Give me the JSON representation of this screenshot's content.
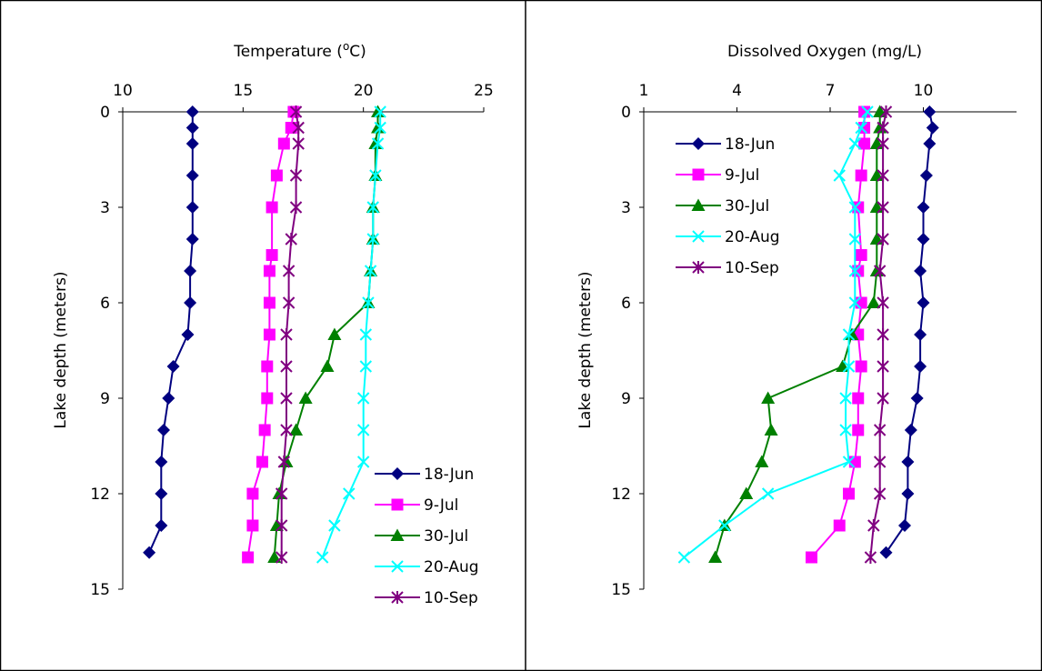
{
  "chart_data": [
    {
      "type": "line",
      "title": "",
      "xlabel": "Temperature (°C)",
      "xlabel_parts": [
        "Temperature (",
        "o",
        "C)"
      ],
      "ylabel": "Lake depth (meters)",
      "x_axis_position": "top",
      "y_inverted": true,
      "xlim": [
        10,
        25
      ],
      "ylim": [
        0,
        15
      ],
      "xticks": [
        "10",
        "15",
        "20",
        "25"
      ],
      "yticks": [
        "0",
        "3",
        "6",
        "9",
        "12",
        "15"
      ],
      "legend_position": "bottom-right",
      "series": [
        {
          "name": "18-Jun",
          "color": "#000080",
          "marker": "diamond",
          "points": [
            [
              12.9,
              0
            ],
            [
              12.9,
              0.5
            ],
            [
              12.9,
              1
            ],
            [
              12.9,
              2
            ],
            [
              12.9,
              3
            ],
            [
              12.9,
              4
            ],
            [
              12.8,
              5
            ],
            [
              12.8,
              6
            ],
            [
              12.7,
              7
            ],
            [
              12.1,
              8
            ],
            [
              11.9,
              9
            ],
            [
              11.7,
              10
            ],
            [
              11.6,
              11
            ],
            [
              11.6,
              12
            ],
            [
              11.6,
              13
            ],
            [
              11.1,
              13.85
            ]
          ]
        },
        {
          "name": "9-Jul",
          "color": "#ff00ff",
          "marker": "square",
          "points": [
            [
              17.1,
              0
            ],
            [
              17.0,
              0.5
            ],
            [
              16.7,
              1
            ],
            [
              16.4,
              2
            ],
            [
              16.2,
              3
            ],
            [
              16.2,
              4.5
            ],
            [
              16.1,
              5
            ],
            [
              16.1,
              6
            ],
            [
              16.1,
              7
            ],
            [
              16.0,
              8
            ],
            [
              16.0,
              9
            ],
            [
              15.9,
              10
            ],
            [
              15.8,
              11
            ],
            [
              15.4,
              12
            ],
            [
              15.4,
              13
            ],
            [
              15.2,
              14
            ]
          ]
        },
        {
          "name": "30-Jul",
          "color": "#008000",
          "marker": "triangle",
          "points": [
            [
              20.6,
              0
            ],
            [
              20.6,
              0.5
            ],
            [
              20.5,
              1
            ],
            [
              20.5,
              2
            ],
            [
              20.4,
              3
            ],
            [
              20.4,
              4
            ],
            [
              20.3,
              5
            ],
            [
              20.2,
              6
            ],
            [
              18.8,
              7
            ],
            [
              18.5,
              8
            ],
            [
              17.6,
              9
            ],
            [
              17.2,
              10
            ],
            [
              16.8,
              11
            ],
            [
              16.5,
              12
            ],
            [
              16.4,
              13
            ],
            [
              16.3,
              14
            ]
          ]
        },
        {
          "name": "20-Aug",
          "color": "#00ffff",
          "marker": "x",
          "points": [
            [
              20.7,
              0
            ],
            [
              20.7,
              0.5
            ],
            [
              20.6,
              1
            ],
            [
              20.5,
              2
            ],
            [
              20.4,
              3
            ],
            [
              20.4,
              4
            ],
            [
              20.3,
              5
            ],
            [
              20.2,
              6
            ],
            [
              20.1,
              7
            ],
            [
              20.1,
              8
            ],
            [
              20.0,
              9
            ],
            [
              20.0,
              10
            ],
            [
              20.0,
              11
            ],
            [
              19.4,
              12
            ],
            [
              18.8,
              13
            ],
            [
              18.3,
              14
            ]
          ]
        },
        {
          "name": "10-Sep",
          "color": "#800080",
          "marker": "asterisk",
          "points": [
            [
              17.2,
              0
            ],
            [
              17.3,
              0.5
            ],
            [
              17.3,
              1
            ],
            [
              17.2,
              2
            ],
            [
              17.2,
              3
            ],
            [
              17.0,
              4
            ],
            [
              16.9,
              5
            ],
            [
              16.9,
              6
            ],
            [
              16.8,
              7
            ],
            [
              16.8,
              8
            ],
            [
              16.8,
              9
            ],
            [
              16.8,
              10
            ],
            [
              16.7,
              11
            ],
            [
              16.6,
              12
            ],
            [
              16.6,
              13
            ],
            [
              16.6,
              14
            ]
          ]
        }
      ]
    },
    {
      "type": "line",
      "title": "",
      "xlabel": "Dissolved Oxygen (mg/L)",
      "ylabel": "Lake depth (meters)",
      "x_axis_position": "top",
      "y_inverted": true,
      "xlim": [
        1,
        13
      ],
      "ylim": [
        0,
        15
      ],
      "xticks": [
        "1",
        "4",
        "7",
        "10"
      ],
      "yticks": [
        "0",
        "3",
        "6",
        "9",
        "12",
        "15"
      ],
      "legend_position": "top-left",
      "series": [
        {
          "name": "18-Jun",
          "color": "#000080",
          "marker": "diamond",
          "points": [
            [
              10.2,
              0
            ],
            [
              10.3,
              0.5
            ],
            [
              10.2,
              1
            ],
            [
              10.1,
              2
            ],
            [
              10.0,
              3
            ],
            [
              10.0,
              4
            ],
            [
              9.9,
              5
            ],
            [
              10.0,
              6
            ],
            [
              9.9,
              7
            ],
            [
              9.9,
              8
            ],
            [
              9.8,
              9
            ],
            [
              9.6,
              10
            ],
            [
              9.5,
              11
            ],
            [
              9.5,
              12
            ],
            [
              9.4,
              13
            ],
            [
              8.8,
              13.85
            ]
          ]
        },
        {
          "name": "9-Jul",
          "color": "#ff00ff",
          "marker": "square",
          "points": [
            [
              8.1,
              0
            ],
            [
              8.1,
              0.5
            ],
            [
              8.1,
              1
            ],
            [
              8.0,
              2
            ],
            [
              7.9,
              3
            ],
            [
              8.0,
              4.5
            ],
            [
              7.9,
              5
            ],
            [
              8.0,
              6
            ],
            [
              7.9,
              7
            ],
            [
              8.0,
              8
            ],
            [
              7.9,
              9
            ],
            [
              7.9,
              10
            ],
            [
              7.8,
              11
            ],
            [
              7.6,
              12
            ],
            [
              7.3,
              13
            ],
            [
              6.4,
              14
            ]
          ]
        },
        {
          "name": "30-Jul",
          "color": "#008000",
          "marker": "triangle",
          "points": [
            [
              8.6,
              0
            ],
            [
              8.6,
              0.5
            ],
            [
              8.5,
              1
            ],
            [
              8.5,
              2
            ],
            [
              8.5,
              3
            ],
            [
              8.5,
              4
            ],
            [
              8.5,
              5
            ],
            [
              8.4,
              6
            ],
            [
              7.7,
              7
            ],
            [
              7.4,
              8
            ],
            [
              5.0,
              9
            ],
            [
              5.1,
              10
            ],
            [
              4.8,
              11
            ],
            [
              4.3,
              12
            ],
            [
              3.6,
              13
            ],
            [
              3.3,
              14
            ]
          ]
        },
        {
          "name": "20-Aug",
          "color": "#00ffff",
          "marker": "x",
          "points": [
            [
              8.2,
              0
            ],
            [
              8.0,
              0.5
            ],
            [
              7.8,
              1
            ],
            [
              7.3,
              2
            ],
            [
              7.8,
              3
            ],
            [
              7.8,
              4
            ],
            [
              7.8,
              5
            ],
            [
              7.8,
              6
            ],
            [
              7.6,
              7
            ],
            [
              7.6,
              8
            ],
            [
              7.5,
              9
            ],
            [
              7.5,
              10
            ],
            [
              7.6,
              11
            ],
            [
              5.0,
              12
            ],
            [
              3.6,
              13
            ],
            [
              2.3,
              14
            ]
          ]
        },
        {
          "name": "10-Sep",
          "color": "#800080",
          "marker": "asterisk",
          "points": [
            [
              8.8,
              0
            ],
            [
              8.7,
              0.5
            ],
            [
              8.7,
              1
            ],
            [
              8.7,
              2
            ],
            [
              8.7,
              3
            ],
            [
              8.7,
              4
            ],
            [
              8.6,
              5
            ],
            [
              8.7,
              6
            ],
            [
              8.7,
              7
            ],
            [
              8.7,
              8
            ],
            [
              8.7,
              9
            ],
            [
              8.6,
              10
            ],
            [
              8.6,
              11
            ],
            [
              8.6,
              12
            ],
            [
              8.4,
              13
            ],
            [
              8.3,
              14
            ]
          ]
        }
      ]
    }
  ]
}
